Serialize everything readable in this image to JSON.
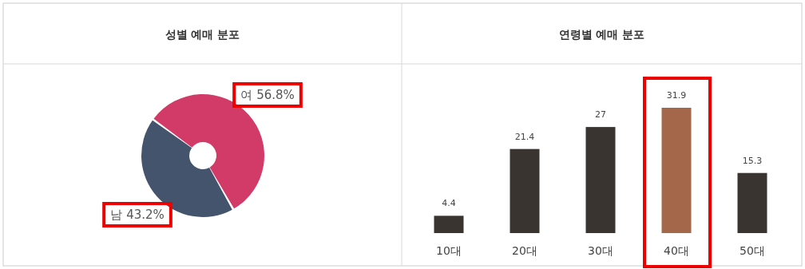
{
  "chart_data": [
    {
      "type": "donut",
      "title": "성별 예매 분포",
      "categories": [
        "여",
        "남"
      ],
      "values": [
        56.8,
        43.2
      ],
      "colors": [
        "#d23a68",
        "#44546c"
      ],
      "value_labels": [
        "56.8%",
        "43.2%"
      ]
    },
    {
      "type": "bar",
      "title": "연령별 예매 분포",
      "categories": [
        "10대",
        "20대",
        "30대",
        "40대",
        "50대"
      ],
      "values": [
        4.4,
        21.4,
        27,
        31.9,
        15.3
      ],
      "colors": [
        "#3a3431",
        "#3a3431",
        "#3a3431",
        "#a5674a",
        "#3a3431"
      ],
      "data_labels": true
    }
  ]
}
